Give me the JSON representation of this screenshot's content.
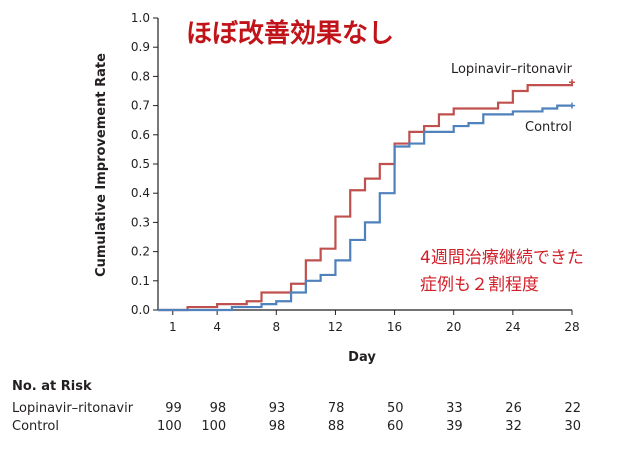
{
  "headline": "ほぼ改善効果なし",
  "annotation_lines": [
    "4週間治療継続できた",
    "症例も２割程度"
  ],
  "chart_data": {
    "type": "line",
    "step": true,
    "ylabel": "Cumulative Improvement Rate",
    "xlabel": "Day",
    "xlim": [
      0,
      28
    ],
    "ylim": [
      0,
      1.0
    ],
    "x_ticks": [
      1,
      4,
      8,
      12,
      16,
      20,
      24,
      28
    ],
    "y_ticks": [
      0.0,
      0.1,
      0.2,
      0.3,
      0.4,
      0.5,
      0.6,
      0.7,
      0.8,
      0.9,
      1.0
    ],
    "y_tick_labels": [
      "0.0",
      "0.1",
      "0.2",
      "0.3",
      "0.4",
      "0.5",
      "0.6",
      "0.7",
      "0.8",
      "0.9",
      "1.0"
    ],
    "grid": false,
    "series": [
      {
        "name": "Lopinavir–ritonavir",
        "color": "#c0504d",
        "points": [
          [
            0,
            0
          ],
          [
            2,
            0.01
          ],
          [
            4,
            0.02
          ],
          [
            6,
            0.03
          ],
          [
            7,
            0.06
          ],
          [
            9,
            0.09
          ],
          [
            10,
            0.17
          ],
          [
            11,
            0.21
          ],
          [
            12,
            0.32
          ],
          [
            13,
            0.41
          ],
          [
            14,
            0.45
          ],
          [
            15,
            0.5
          ],
          [
            16,
            0.57
          ],
          [
            17,
            0.61
          ],
          [
            18,
            0.63
          ],
          [
            19,
            0.67
          ],
          [
            20,
            0.69
          ],
          [
            23,
            0.71
          ],
          [
            24,
            0.75
          ],
          [
            25,
            0.77
          ],
          [
            28,
            0.78
          ]
        ],
        "censor_end": true
      },
      {
        "name": "Control",
        "color": "#4f81bd",
        "points": [
          [
            0,
            0
          ],
          [
            5,
            0.01
          ],
          [
            7,
            0.02
          ],
          [
            8,
            0.03
          ],
          [
            9,
            0.06
          ],
          [
            10,
            0.1
          ],
          [
            11,
            0.12
          ],
          [
            12,
            0.17
          ],
          [
            13,
            0.24
          ],
          [
            14,
            0.3
          ],
          [
            15,
            0.4
          ],
          [
            16,
            0.56
          ],
          [
            17,
            0.57
          ],
          [
            18,
            0.61
          ],
          [
            20,
            0.63
          ],
          [
            21,
            0.64
          ],
          [
            22,
            0.67
          ],
          [
            24,
            0.68
          ],
          [
            26,
            0.69
          ],
          [
            27,
            0.7
          ],
          [
            28,
            0.7
          ]
        ],
        "censor_end": true
      }
    ]
  },
  "risk_table": {
    "title": "No. at Risk",
    "columns_day": [
      1,
      4,
      8,
      12,
      16,
      20,
      24,
      28
    ],
    "rows": [
      {
        "label": "Lopinavir–ritonavir",
        "values": [
          "99",
          "98",
          "93",
          "78",
          "50",
          "33",
          "26",
          "22"
        ]
      },
      {
        "label": "Control",
        "values": [
          "100",
          "100",
          "98",
          "88",
          "60",
          "39",
          "32",
          "30"
        ]
      }
    ]
  }
}
